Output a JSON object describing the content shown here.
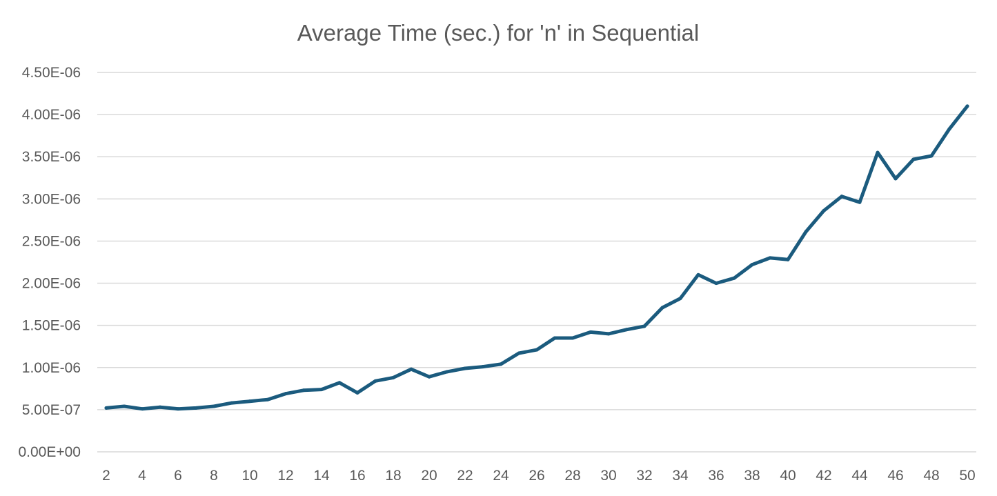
{
  "chart_data": {
    "type": "line",
    "title": "Average Time (sec.) for 'n' in Sequential",
    "xlabel": "",
    "ylabel": "",
    "x": [
      2,
      3,
      4,
      5,
      6,
      7,
      8,
      9,
      10,
      11,
      12,
      13,
      14,
      15,
      16,
      17,
      18,
      19,
      20,
      21,
      22,
      23,
      24,
      25,
      26,
      27,
      28,
      29,
      30,
      31,
      32,
      33,
      34,
      35,
      36,
      37,
      38,
      39,
      40,
      41,
      42,
      43,
      44,
      45,
      46,
      47,
      48,
      49,
      50
    ],
    "x_tick_labels": [
      "2",
      "4",
      "6",
      "8",
      "10",
      "12",
      "14",
      "16",
      "18",
      "20",
      "22",
      "24",
      "26",
      "28",
      "30",
      "32",
      "34",
      "36",
      "38",
      "40",
      "42",
      "44",
      "46",
      "48",
      "50"
    ],
    "y_tick_labels": [
      "0.00E+00",
      "5.00E-07",
      "1.00E-06",
      "1.50E-06",
      "2.00E-06",
      "2.50E-06",
      "3.00E-06",
      "3.50E-06",
      "4.00E-06",
      "4.50E-06"
    ],
    "ylim": [
      0,
      4.5e-06
    ],
    "series": [
      {
        "color": "#1b5b7e",
        "values": [
          5.2e-07,
          5.4e-07,
          5.1e-07,
          5.3e-07,
          5.1e-07,
          5.2e-07,
          5.4e-07,
          5.8e-07,
          6e-07,
          6.2e-07,
          6.9e-07,
          7.3e-07,
          7.4e-07,
          8.2e-07,
          7e-07,
          8.4e-07,
          8.8e-07,
          9.8e-07,
          8.9e-07,
          9.5e-07,
          9.9e-07,
          1.01e-06,
          1.04e-06,
          1.17e-06,
          1.21e-06,
          1.35e-06,
          1.35e-06,
          1.42e-06,
          1.4e-06,
          1.45e-06,
          1.49e-06,
          1.71e-06,
          1.82e-06,
          2.1e-06,
          2e-06,
          2.06e-06,
          2.22e-06,
          2.3e-06,
          2.28e-06,
          2.61e-06,
          2.86e-06,
          3.03e-06,
          2.96e-06,
          3.55e-06,
          3.24e-06,
          3.47e-06,
          3.51e-06,
          3.83e-06,
          4.1e-06
        ]
      }
    ],
    "grid": true,
    "legend": "none"
  }
}
